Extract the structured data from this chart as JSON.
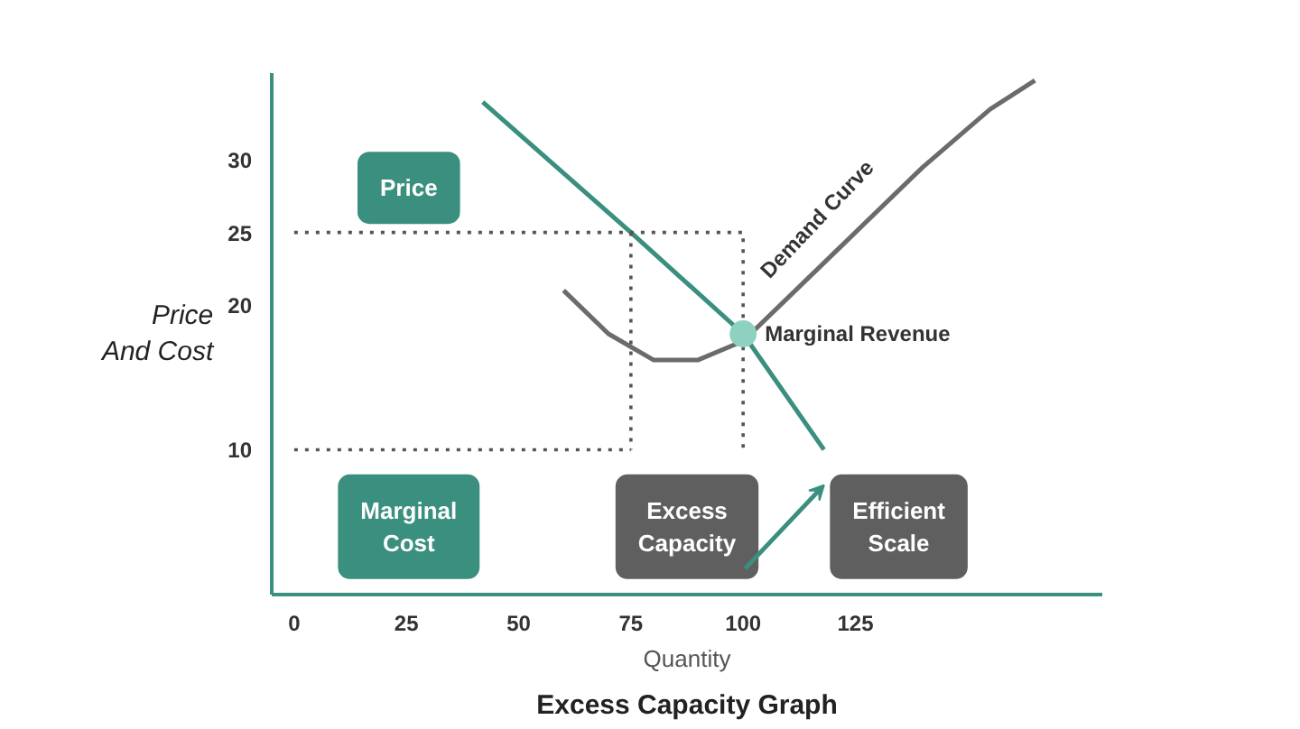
{
  "chart_data": {
    "type": "line",
    "title": "Excess Capacity Graph",
    "xlabel": "Quantity",
    "ylabel": "Price And Cost",
    "xlim": [
      -5,
      180
    ],
    "ylim": [
      0,
      36
    ],
    "xticks": [
      0,
      25,
      50,
      75,
      100,
      125
    ],
    "yticks": [
      10,
      20,
      25,
      30
    ],
    "grid": false,
    "marker": "none",
    "series": [
      {
        "color": "#3a8f7e",
        "x": [
          42,
          75,
          100,
          118
        ],
        "values": [
          34,
          25,
          18,
          10
        ]
      },
      {
        "name": "Demand Curve",
        "color": "#6b6b6b",
        "x": [
          60,
          70,
          80,
          90,
          100,
          110,
          125,
          140,
          155,
          165
        ],
        "values": [
          21,
          18,
          16.2,
          16.2,
          17.5,
          20.5,
          25,
          29.5,
          33.5,
          35.5
        ]
      },
      {
        "color": "#555555",
        "line_style": "dotted",
        "x": [
          0,
          100,
          100
        ],
        "values": [
          25,
          25,
          10
        ]
      },
      {
        "color": "#555555",
        "line_style": "dotted",
        "x": [
          75,
          75
        ],
        "values": [
          25,
          10
        ]
      },
      {
        "color": "#555555",
        "line_style": "dotted",
        "x": [
          0,
          75
        ],
        "values": [
          10,
          10
        ]
      },
      {
        "name": "Marginal Revenue",
        "type": "scatter",
        "marker": "circle",
        "color": "#8fd1c1",
        "x": [
          100
        ],
        "values": [
          18
        ]
      }
    ],
    "annotations": [
      "Price",
      "Marginal Cost",
      "Excess Capacity",
      "Efficient Scale"
    ]
  }
}
